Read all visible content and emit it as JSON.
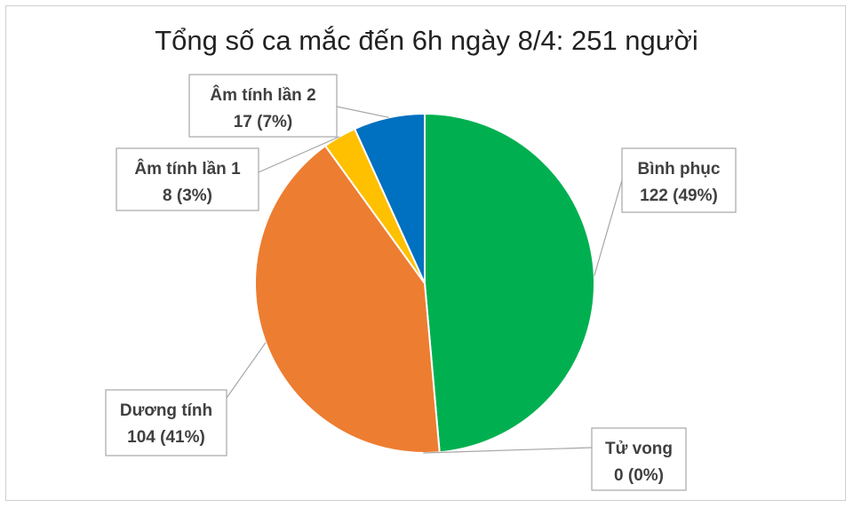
{
  "chart_data": {
    "type": "pie",
    "title": "Tổng số ca mắc đến 6h ngày 8/4: 251 người",
    "slices": [
      {
        "name": "Bình phục",
        "value": 122,
        "label": "122 (49%)",
        "color": "#00b050"
      },
      {
        "name": "Tử vong",
        "value": 0,
        "label": "0 (0%)",
        "color": "#7f7f7f"
      },
      {
        "name": "Dương tính",
        "value": 104,
        "label": "104 (41%)",
        "color": "#ed7d31"
      },
      {
        "name": "Âm tính lần 1",
        "value": 8,
        "label": "8 (3%)",
        "color": "#ffc000"
      },
      {
        "name": "Âm tính lần 2",
        "value": 17,
        "label": "17 (7%)",
        "color": "#0070c0"
      }
    ],
    "legend": "none"
  }
}
